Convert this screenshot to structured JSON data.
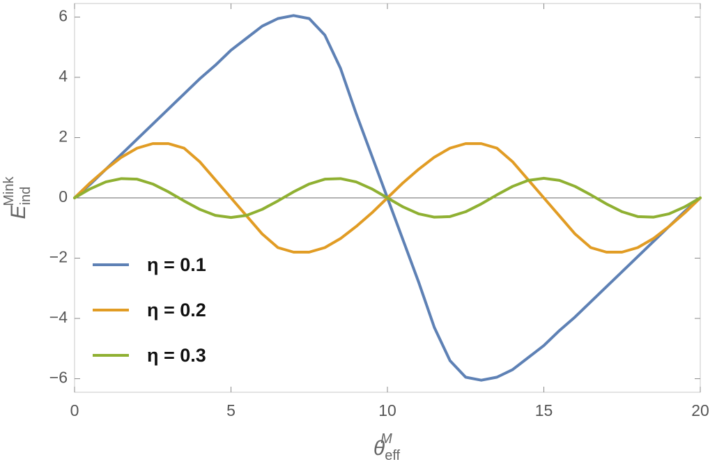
{
  "chart_data": {
    "type": "line",
    "xlabel": {
      "text": "θ",
      "sub": "eff",
      "sup": "M"
    },
    "ylabel": {
      "text": "E",
      "sub": "ind",
      "sup": "Mink"
    },
    "x": [
      0,
      0.5,
      1,
      1.5,
      2,
      2.5,
      3,
      3.5,
      4,
      4.5,
      5,
      5.5,
      6,
      6.5,
      7,
      7.5,
      8,
      8.5,
      9,
      9.5,
      10,
      10.5,
      11,
      11.5,
      12,
      12.5,
      13,
      13.5,
      14,
      14.5,
      15,
      15.5,
      16,
      16.5,
      17,
      17.5,
      18,
      18.5,
      19,
      19.5,
      20
    ],
    "series": [
      {
        "name": "η = 0.1",
        "color": "#5e81b5",
        "values": [
          0,
          0.45,
          0.95,
          1.45,
          1.95,
          2.45,
          2.95,
          3.45,
          3.95,
          4.4,
          4.9,
          5.3,
          5.7,
          5.95,
          6.05,
          5.95,
          5.4,
          4.3,
          2.8,
          1.4,
          0,
          -1.4,
          -2.8,
          -4.3,
          -5.4,
          -5.95,
          -6.05,
          -5.95,
          -5.7,
          -5.3,
          -4.9,
          -4.4,
          -3.95,
          -3.45,
          -2.95,
          -2.45,
          -1.95,
          -1.45,
          -0.95,
          -0.45,
          0
        ]
      },
      {
        "name": "η = 0.2",
        "color": "#e19c24",
        "values": [
          0,
          0.5,
          0.95,
          1.35,
          1.65,
          1.8,
          1.8,
          1.65,
          1.2,
          0.6,
          0,
          -0.6,
          -1.2,
          -1.65,
          -1.8,
          -1.8,
          -1.65,
          -1.35,
          -0.95,
          -0.5,
          0,
          0.5,
          0.95,
          1.35,
          1.65,
          1.8,
          1.8,
          1.65,
          1.2,
          0.6,
          0,
          -0.6,
          -1.2,
          -1.65,
          -1.8,
          -1.8,
          -1.65,
          -1.35,
          -0.95,
          -0.5,
          0
        ]
      },
      {
        "name": "η = 0.3",
        "color": "#8fb032",
        "values": [
          0,
          0.3,
          0.53,
          0.64,
          0.62,
          0.46,
          0.2,
          -0.1,
          -0.38,
          -0.58,
          -0.65,
          -0.58,
          -0.38,
          -0.1,
          0.2,
          0.46,
          0.62,
          0.64,
          0.53,
          0.3,
          0,
          -0.3,
          -0.53,
          -0.64,
          -0.62,
          -0.46,
          -0.2,
          0.1,
          0.38,
          0.58,
          0.65,
          0.58,
          0.38,
          0.1,
          -0.2,
          -0.46,
          -0.62,
          -0.64,
          -0.53,
          -0.3,
          0
        ]
      }
    ],
    "xlim": [
      0,
      20
    ],
    "xticks": [
      0,
      5,
      10,
      15,
      20
    ],
    "ylim": [
      -6.45,
      6.45
    ],
    "yticks": [
      {
        "value": -6,
        "label": "−6"
      },
      {
        "value": -4,
        "label": "−4"
      },
      {
        "value": -2,
        "label": "−2"
      },
      0,
      2,
      4,
      6
    ],
    "legend": "left"
  }
}
